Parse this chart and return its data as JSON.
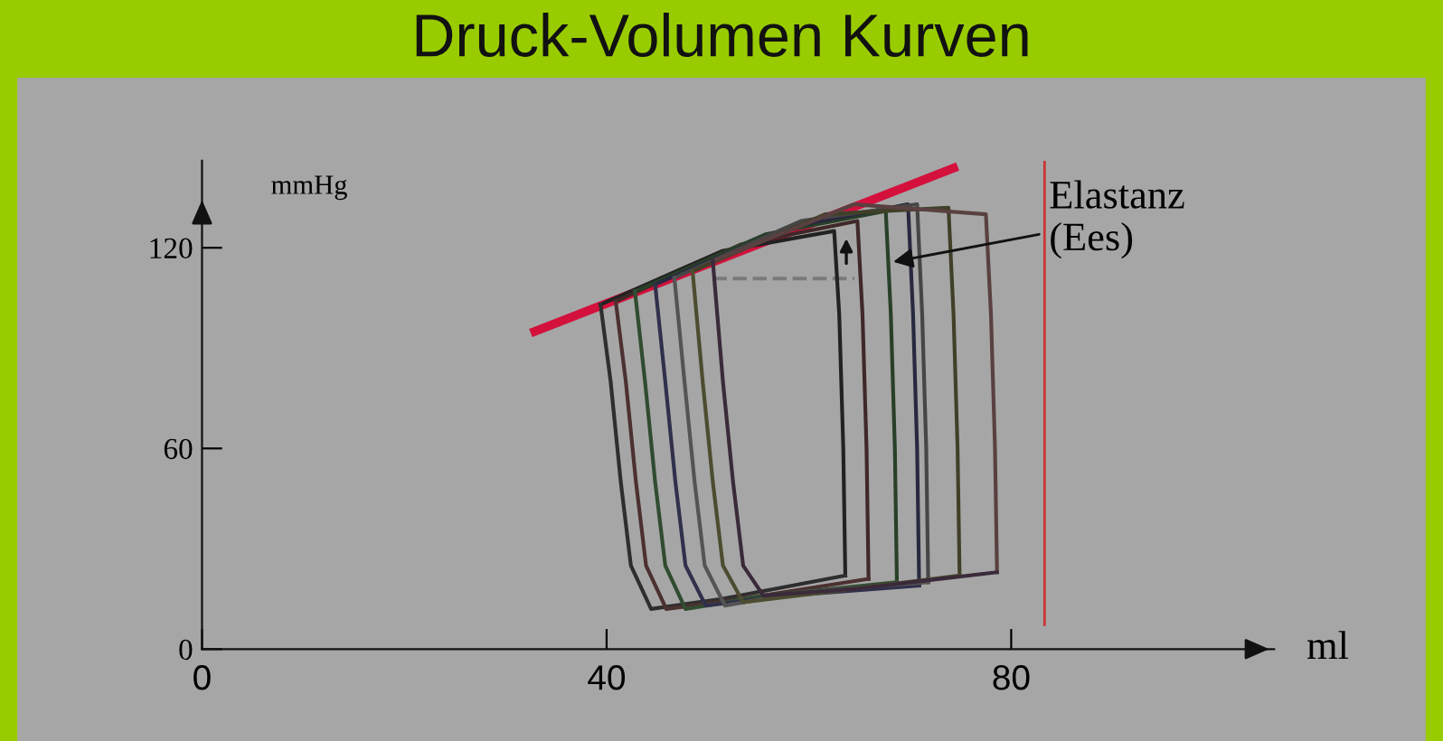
{
  "chart_data": {
    "type": "line",
    "title": "Druck-Volumen Kurven",
    "xlabel": "ml",
    "ylabel": "mmHg",
    "xlim": [
      0,
      106
    ],
    "ylim": [
      0,
      146
    ],
    "xticks": [
      0,
      40,
      80
    ],
    "yticks": [
      0,
      60,
      120
    ],
    "grid": false,
    "legend": false,
    "marker": "none",
    "series": [
      {
        "color": "#d4103c",
        "x": [
          32.9,
          74.3
        ],
        "values": [
          95,
          143.8
        ]
      },
      {
        "color": "#7a7a7a",
        "line_style": "dashed",
        "x": [
          50.5,
          64.5
        ],
        "values": [
          110.8,
          110.8
        ]
      },
      {
        "color": "#222222",
        "x": [
          39.4,
          51.4,
          62.5,
          63.0,
          63.4,
          63.6
        ],
        "values": [
          103,
          119,
          125,
          100,
          60,
          22
        ]
      },
      {
        "color": "#2e2e2e",
        "x": [
          39.4,
          40.4,
          41.4,
          42.4,
          44.4,
          51.4,
          63.6
        ],
        "values": [
          103,
          80,
          50,
          25,
          12,
          15,
          22
        ]
      },
      {
        "color": "#402828",
        "x": [
          40.9,
          53.3,
          64.8,
          65.3,
          65.7,
          65.9
        ],
        "values": [
          104,
          121,
          128,
          100,
          60,
          21
        ]
      },
      {
        "color": "#4c3030",
        "x": [
          40.9,
          41.9,
          42.9,
          43.9,
          45.9,
          53.3,
          65.9
        ],
        "values": [
          104,
          80,
          50,
          25,
          12,
          15,
          21
        ]
      },
      {
        "color": "#284028",
        "x": [
          42.8,
          55.7,
          67.6,
          68.1,
          68.5,
          68.7
        ],
        "values": [
          107,
          124,
          131,
          100,
          60,
          20
        ]
      },
      {
        "color": "#304c30",
        "x": [
          42.8,
          43.8,
          44.8,
          45.8,
          47.8,
          55.7,
          68.7
        ],
        "values": [
          107,
          80,
          50,
          25,
          12,
          16,
          20
        ]
      },
      {
        "color": "#282840",
        "x": [
          44.8,
          57.8,
          69.8,
          70.3,
          70.7,
          70.9
        ],
        "values": [
          109,
          126,
          133,
          100,
          60,
          19
        ]
      },
      {
        "color": "#30304c",
        "x": [
          44.8,
          45.8,
          46.8,
          47.8,
          49.8,
          57.8,
          70.9
        ],
        "values": [
          109,
          80,
          50,
          25,
          13,
          16,
          19
        ]
      },
      {
        "color": "#464646",
        "x": [
          46.7,
          59.2,
          70.7,
          71.2,
          71.6,
          71.8
        ],
        "values": [
          111,
          128,
          133,
          100,
          60,
          20
        ]
      },
      {
        "color": "#545454",
        "x": [
          46.7,
          47.7,
          48.7,
          49.7,
          51.7,
          59.2,
          71.8
        ],
        "values": [
          111,
          80,
          50,
          25,
          13,
          17,
          20
        ]
      },
      {
        "color": "#404028",
        "x": [
          48.5,
          61.6,
          73.8,
          74.3,
          74.7,
          74.9
        ],
        "values": [
          113,
          130,
          132,
          100,
          60,
          22
        ]
      },
      {
        "color": "#4c4c30",
        "x": [
          48.5,
          49.5,
          50.5,
          51.5,
          53.5,
          61.6,
          74.9
        ],
        "values": [
          113,
          80,
          50,
          25,
          14,
          17,
          22
        ]
      },
      {
        "color": "#5a4040",
        "x": [
          50.5,
          64.5,
          77.5,
          78.0,
          78.4,
          78.6
        ],
        "values": [
          116,
          133,
          130,
          100,
          60,
          23
        ]
      },
      {
        "color": "#3a2a3a",
        "x": [
          50.5,
          51.5,
          52.5,
          53.5,
          55.5,
          64.5,
          78.6
        ],
        "values": [
          116,
          80,
          50,
          25,
          16,
          18,
          23
        ]
      }
    ],
    "ref_lines": [
      {
        "axis": "x",
        "value": 83.3,
        "color": "#cc3333"
      }
    ],
    "annotations": [
      {
        "text": "Elastanz\n(Ees)",
        "x": 67.85,
        "y": 115.5
      }
    ]
  }
}
